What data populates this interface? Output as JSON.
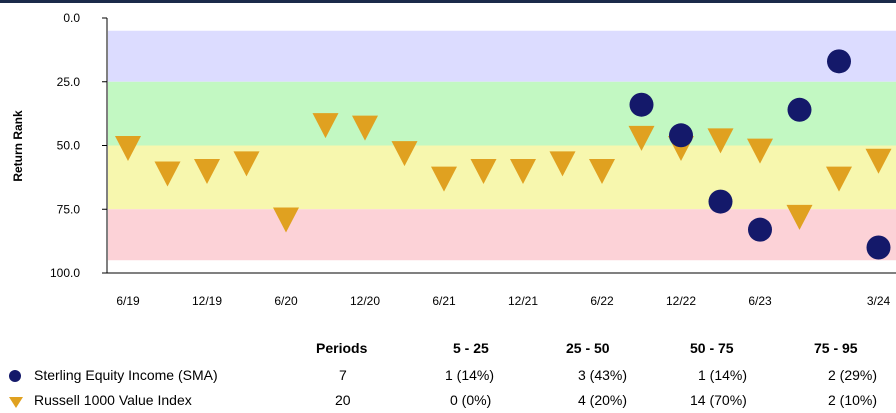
{
  "chart_data": {
    "type": "scatter",
    "title": "",
    "xlabel": "",
    "ylabel": "Return Rank",
    "y_inverted": true,
    "ylim": [
      0,
      100
    ],
    "y_ticks": [
      "0.0",
      "25.0",
      "50.0",
      "75.0",
      "100.0"
    ],
    "x_ticks": [
      "6/19",
      "12/19",
      "6/20",
      "12/20",
      "6/21",
      "12/21",
      "6/22",
      "12/22",
      "6/23",
      "3/24"
    ],
    "x_tick_quarters": [
      0,
      2,
      4,
      6,
      8,
      10,
      12,
      14,
      16,
      19
    ],
    "bands": [
      {
        "from": 5,
        "to": 25,
        "color": "#dcdcff"
      },
      {
        "from": 25,
        "to": 50,
        "color": "#c2f8c2"
      },
      {
        "from": 50,
        "to": 75,
        "color": "#f7f7ae"
      },
      {
        "from": 75,
        "to": 95,
        "color": "#fcd2d7"
      }
    ],
    "series": [
      {
        "name": "Sterling Equity Income (SMA)",
        "marker": "circle",
        "color": "#14196a",
        "points": [
          {
            "quarter": 13,
            "rank": 34
          },
          {
            "quarter": 14,
            "rank": 46
          },
          {
            "quarter": 15,
            "rank": 72
          },
          {
            "quarter": 16,
            "rank": 83
          },
          {
            "quarter": 17,
            "rank": 36
          },
          {
            "quarter": 18,
            "rank": 17
          },
          {
            "quarter": 19,
            "rank": 90
          }
        ]
      },
      {
        "name": "Russell 1000 Value Index",
        "marker": "triangle-down",
        "color": "#e0a120",
        "points": [
          {
            "quarter": 0,
            "rank": 51
          },
          {
            "quarter": 1,
            "rank": 61
          },
          {
            "quarter": 2,
            "rank": 60
          },
          {
            "quarter": 3,
            "rank": 57
          },
          {
            "quarter": 4,
            "rank": 79
          },
          {
            "quarter": 5,
            "rank": 42
          },
          {
            "quarter": 6,
            "rank": 43
          },
          {
            "quarter": 7,
            "rank": 53
          },
          {
            "quarter": 8,
            "rank": 63
          },
          {
            "quarter": 9,
            "rank": 60
          },
          {
            "quarter": 10,
            "rank": 60
          },
          {
            "quarter": 11,
            "rank": 57
          },
          {
            "quarter": 12,
            "rank": 60
          },
          {
            "quarter": 13,
            "rank": 47
          },
          {
            "quarter": 14,
            "rank": 51
          },
          {
            "quarter": 15,
            "rank": 48
          },
          {
            "quarter": 16,
            "rank": 52
          },
          {
            "quarter": 17,
            "rank": 78
          },
          {
            "quarter": 18,
            "rank": 63
          },
          {
            "quarter": 19,
            "rank": 56
          }
        ]
      }
    ]
  },
  "stats_table": {
    "headers": [
      "Periods",
      "5 - 25",
      "25 - 50",
      "50 - 75",
      "75 - 95"
    ],
    "rows": [
      {
        "name": "Sterling Equity Income (SMA)",
        "marker": "circle",
        "periods": "7",
        "b1": "1 (14%)",
        "b2": "3 (43%)",
        "b3": "1 (14%)",
        "b4": "2 (29%)"
      },
      {
        "name": "Russell 1000 Value Index",
        "marker": "triangle",
        "periods": "20",
        "b1": "0 (0%)",
        "b2": "4 (20%)",
        "b3": "14 (70%)",
        "b4": "2 (10%)"
      }
    ]
  }
}
